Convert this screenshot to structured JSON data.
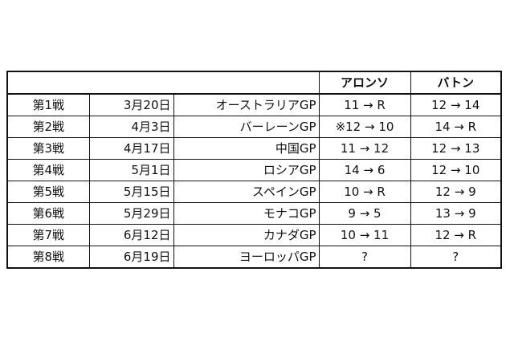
{
  "page": {
    "background": "#ffffff",
    "border_color": "#111111",
    "text_color": "#111111"
  },
  "chart_data": {
    "type": "table",
    "title": "",
    "columns": [
      "",
      "",
      "",
      "アロンソ",
      "バトン"
    ],
    "rows": [
      [
        "第1戦",
        "3月20日",
        "オーストラリアGP",
        "11 → R",
        "12 → 14"
      ],
      [
        "第2戦",
        "4月3日",
        "バーレーンGP",
        "※12 → 10",
        "14 → R"
      ],
      [
        "第3戦",
        "4月17日",
        "中国GP",
        "11 → 12",
        "12 → 13"
      ],
      [
        "第4戦",
        "5月1日",
        "ロシアGP",
        "14 → 6",
        "12 → 10"
      ],
      [
        "第5戦",
        "5月15日",
        "スペインGP",
        "10 → R",
        "12 → 9"
      ],
      [
        "第6戦",
        "5月29日",
        "モナコGP",
        "9 → 5",
        "13 → 9"
      ],
      [
        "第7戦",
        "6月12日",
        "カナダGP",
        "10 → 11",
        "12 → R"
      ],
      [
        "第8戦",
        "6月19日",
        "ヨーロッパGP",
        "?",
        "?"
      ]
    ],
    "layout": {
      "grid": true,
      "header_empty_span": 3,
      "outer_border_px": 2,
      "inner_border_px": 1
    }
  }
}
